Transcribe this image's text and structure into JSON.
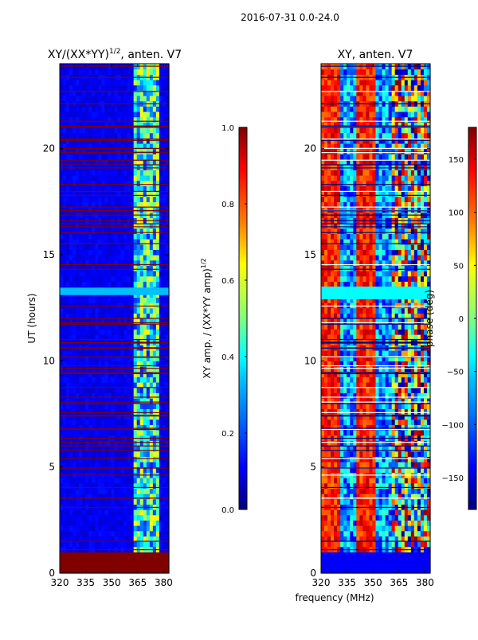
{
  "figure": {
    "suptitle": "2016-07-31 0.0-24.0",
    "shared_xlabel": "frequency (MHz)"
  },
  "chart_data": [
    {
      "type": "heatmap",
      "id": "amp",
      "title_main": "XY/(XX*YY)",
      "title_sup": "1/2",
      "title_tail": ", anten. V7",
      "ylabel": "UT (hours)",
      "xlim": [
        320,
        383
      ],
      "ylim": [
        0,
        24
      ],
      "xticks": [
        320,
        335,
        350,
        365,
        380
      ],
      "yticks": [
        0,
        5,
        10,
        15,
        20
      ],
      "highlight_band_mhz": [
        363,
        378
      ],
      "colorbar": {
        "label_main": "XY amp. / (XX*YY amp)",
        "label_sup": "1/2",
        "range": [
          0.0,
          1.0
        ],
        "ticks": [
          "0.0",
          "0.2",
          "0.4",
          "0.6",
          "0.8",
          "1.0"
        ]
      }
    },
    {
      "type": "heatmap",
      "id": "phase",
      "title_main": "XY, anten. V7",
      "title_sup": "",
      "title_tail": "",
      "ylabel": "",
      "xlim": [
        320,
        383
      ],
      "ylim": [
        0,
        24
      ],
      "xticks": [
        320,
        335,
        350,
        365,
        380
      ],
      "yticks": [
        0,
        5,
        10,
        15,
        20
      ],
      "colorbar": {
        "label_main": "phase (deg)",
        "label_sup": "",
        "range": [
          -180,
          180
        ],
        "ticks": [
          "−150",
          "−100",
          "−50",
          "0",
          "50",
          "100",
          "150"
        ]
      }
    }
  ],
  "colors": {
    "jet_stops": [
      "#00007f",
      "#0000ff",
      "#007fff",
      "#00ffff",
      "#7fff7f",
      "#ffff00",
      "#ff7f00",
      "#ff0000",
      "#7f0000"
    ]
  }
}
